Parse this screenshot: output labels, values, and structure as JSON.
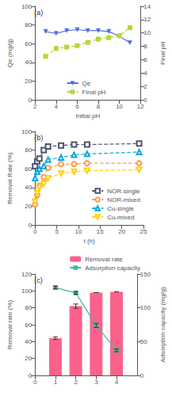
{
  "chart_data": [
    {
      "type": "line",
      "annotation": "(a)",
      "xlabel": "Initial pH",
      "ylabel": "Qe (mg/g)",
      "y2label": "Final pH",
      "x": [
        3,
        4,
        5,
        6,
        7,
        8,
        9,
        10,
        11
      ],
      "xlim": [
        2,
        12
      ],
      "xticks": [
        2,
        4,
        6,
        8,
        10,
        12
      ],
      "ylim": [
        0,
        100
      ],
      "yticks": [
        0,
        20,
        40,
        60,
        80,
        100
      ],
      "y2lim": [
        0,
        14
      ],
      "y2ticks": [
        0,
        2,
        4,
        6,
        8,
        10,
        12,
        14
      ],
      "grid": false,
      "legend": "lower center",
      "series": [
        {
          "name": "Qe",
          "marker": "triangle_down",
          "line_style": "solid",
          "values": [
            73,
            71,
            74,
            75,
            74,
            74,
            73,
            68,
            61
          ]
        },
        {
          "name": "Final pH",
          "axis": "y2",
          "marker": "square",
          "line_style": "dashed",
          "values": [
            6.5,
            7.7,
            7.9,
            8.1,
            8.6,
            9.1,
            9.3,
            9.6,
            10.8
          ]
        }
      ]
    },
    {
      "type": "line",
      "annotation": "(b)",
      "xlabel": "t (h)",
      "ylabel": "Removal Rate (%)",
      "x": [
        0,
        0.5,
        1,
        2,
        3,
        6,
        9,
        12,
        24
      ],
      "xlim": [
        0,
        25
      ],
      "xticks": [
        0,
        5,
        10,
        15,
        20,
        25
      ],
      "ylim": [
        0,
        100
      ],
      "yticks": [
        0,
        20,
        40,
        60,
        80,
        100
      ],
      "grid": false,
      "legend": "lower right",
      "series": [
        {
          "name": "NOR-single",
          "marker": "open_square",
          "line_style": "dashed",
          "values": [
            63,
            68,
            71,
            80,
            84,
            85,
            86,
            86,
            87
          ]
        },
        {
          "name": "NOR-mixed",
          "marker": "open_circle",
          "line_style": "dashed",
          "values": [
            22,
            32,
            42,
            51,
            61,
            65,
            65,
            66,
            66
          ]
        },
        {
          "name": "Cu-single",
          "marker": "open_triangle_up",
          "line_style": "dashed",
          "values": [
            50,
            57,
            60,
            63,
            70,
            72,
            75,
            76,
            78
          ]
        },
        {
          "name": "Cu-mixed",
          "marker": "open_triangle_down",
          "line_style": "dashed",
          "values": [
            25,
            34,
            40,
            44,
            50,
            55,
            57,
            58,
            59
          ]
        }
      ]
    },
    {
      "type": "bar",
      "annotation": "(c)",
      "ylabel": "Removal rate (%)",
      "y2label": "Adsorption capacity (mg/g)",
      "x": [
        1,
        2,
        3,
        4
      ],
      "xlim": [
        0,
        5
      ],
      "xticks": [
        0,
        1,
        2,
        3,
        4
      ],
      "ylim": [
        0,
        120
      ],
      "yticks": [
        0,
        20,
        40,
        60,
        80,
        100,
        120
      ],
      "y2lim": [
        0,
        150
      ],
      "y2ticks": [
        0,
        50,
        100,
        150
      ],
      "grid": false,
      "legend": "upper right",
      "series": [
        {
          "name": "Removal rate",
          "type": "bar",
          "values": [
            44,
            82,
            98,
            99
          ],
          "errors": [
            1.5,
            2.5,
            0,
            0
          ]
        },
        {
          "name": "Adsorption capacity",
          "type": "line",
          "axis": "y2",
          "marker": "square",
          "line_style": "solid",
          "values": [
            130,
            122,
            74,
            37
          ],
          "errors": [
            2,
            2,
            3,
            2
          ]
        }
      ]
    }
  ]
}
